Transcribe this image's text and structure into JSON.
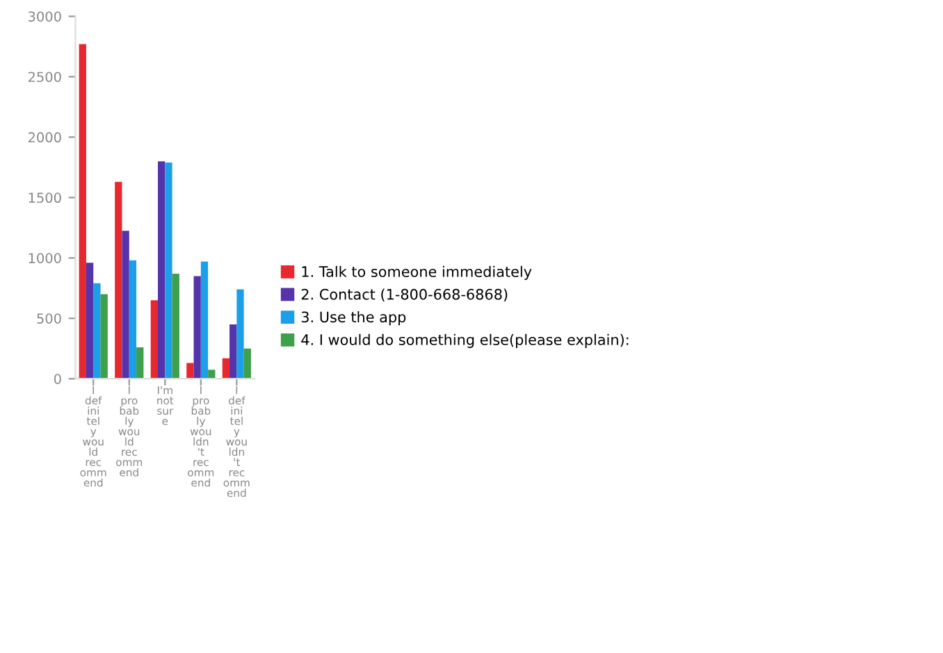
{
  "chart_data": {
    "type": "bar",
    "categories": [
      "I definitely would recommend",
      "I probably would recommend",
      "I'm not sure",
      "I probably wouldn't recommend",
      "I definitely wouldn't recommend"
    ],
    "series": [
      {
        "name": "1. Talk to someone immediately",
        "color": "#e8282f",
        "values": [
          2770,
          1630,
          650,
          130,
          170
        ]
      },
      {
        "name": "2. Contact (1-800-668-6868)",
        "color": "#5533aa",
        "values": [
          960,
          1225,
          1800,
          850,
          450
        ]
      },
      {
        "name": "3. Use the app",
        "color": "#1a9fe8",
        "values": [
          790,
          980,
          1790,
          970,
          740
        ]
      },
      {
        "name": "4. I would do something else(please explain):",
        "color": "#3ea04a",
        "values": [
          700,
          260,
          870,
          75,
          250
        ]
      }
    ],
    "ylim": [
      0,
      3000
    ],
    "yticks": [
      0,
      500,
      1000,
      1500,
      2000,
      2500,
      3000
    ],
    "grid": false,
    "legend": "right"
  }
}
